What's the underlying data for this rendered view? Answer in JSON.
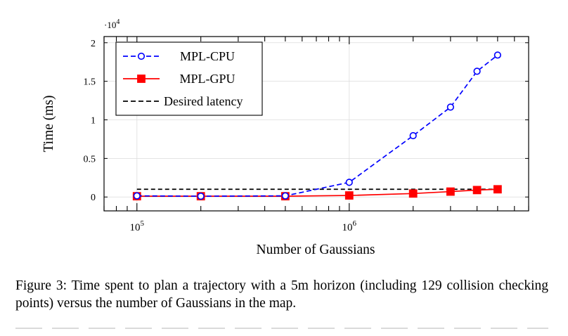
{
  "chart_data": {
    "type": "line",
    "xlabel": "Number of Gaussians",
    "ylabel": "Time (ms)",
    "x_scale": "log",
    "xlim": [
      70000,
      7000000
    ],
    "ylim": [
      -1800,
      20800
    ],
    "y_multiplier_label": "·10",
    "y_multiplier_exp": "4",
    "x_ticks": [
      {
        "value": 100000,
        "base": "10",
        "exp": "5"
      },
      {
        "value": 1000000,
        "base": "10",
        "exp": "6"
      }
    ],
    "y_ticks": [
      {
        "value": 0,
        "label": "0"
      },
      {
        "value": 5000,
        "label": "0.5"
      },
      {
        "value": 10000,
        "label": "1"
      },
      {
        "value": 15000,
        "label": "1.5"
      },
      {
        "value": 20000,
        "label": "2"
      }
    ],
    "grid": true,
    "legend_position": "top-left",
    "series": [
      {
        "name": "MPL-CPU",
        "color": "#0000ff",
        "style": "dashed",
        "marker": "circle",
        "x": [
          100000,
          200000,
          500000,
          1000000,
          2000000,
          3000000,
          4000000,
          5000000
        ],
        "y": [
          150,
          100,
          150,
          1900,
          7950,
          11650,
          16300,
          18400
        ]
      },
      {
        "name": "MPL-GPU",
        "color": "#ff0000",
        "style": "solid",
        "marker": "square",
        "x": [
          100000,
          200000,
          500000,
          1000000,
          2000000,
          3000000,
          4000000,
          5000000
        ],
        "y": [
          100,
          100,
          100,
          200,
          450,
          700,
          900,
          1000
        ]
      },
      {
        "name": "Desired latency",
        "color": "#000000",
        "style": "dashed",
        "marker": "none",
        "x": [
          100000,
          5000000
        ],
        "y": [
          1000,
          1000
        ]
      }
    ]
  },
  "caption": "Figure 3: Time spent to plan a trajectory with a 5m horizon (including 129 collision checking points) versus the number of Gaussians in the map."
}
